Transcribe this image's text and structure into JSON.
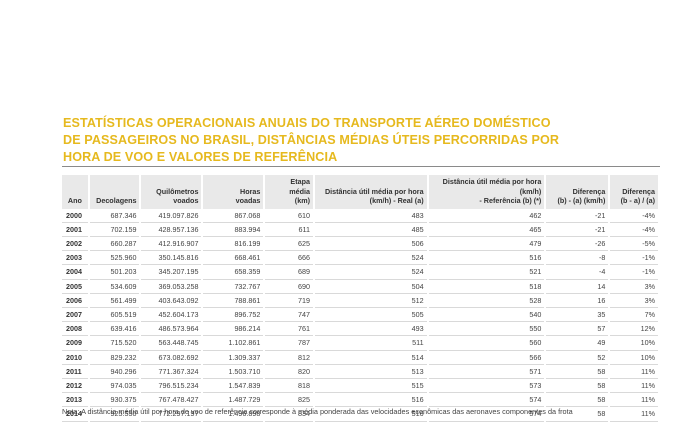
{
  "document": {
    "title_lines": [
      "ESTATÍSTICAS OPERACIONAIS ANUAIS DO TRANSPORTE AÉREO DOMÉSTICO",
      "DE PASSAGEIROS NO BRASIL, DISTÂNCIAS MÉDIAS ÚTEIS PERCORRIDAS POR",
      "HORA DE VOO E VALORES DE REFERÊNCIA"
    ],
    "note": "Nota: A distância média útil por hora de voo de referência corresponde à média ponderada das velocidades econômicas das aeronaves componentes da frota"
  },
  "colors": {
    "title": "#e6b91e",
    "header_bg": "#e9e9e9",
    "row_rule": "#d9d9d9"
  },
  "table": {
    "headers": [
      [
        "Ano"
      ],
      [
        "Decolagens"
      ],
      [
        "Quilômetros",
        "voados"
      ],
      [
        "Horas",
        "voadas"
      ],
      [
        "Etapa média",
        "(km)"
      ],
      [
        "Distância útil média por hora",
        "(km/h) - Real (a)"
      ],
      [
        "Distância útil média por hora (km/h)",
        "- Referência (b) (*)"
      ],
      [
        "Diferença",
        "(b) - (a) (km/h)"
      ],
      [
        "Diferença",
        "(b - a) / (a)"
      ]
    ],
    "rows": [
      [
        "2000",
        "687.346",
        "419.097.826",
        "867.068",
        "610",
        "483",
        "462",
        "-21",
        "-4%"
      ],
      [
        "2001",
        "702.159",
        "428.957.136",
        "883.994",
        "611",
        "485",
        "465",
        "-21",
        "-4%"
      ],
      [
        "2002",
        "660.287",
        "412.916.907",
        "816.199",
        "625",
        "506",
        "479",
        "-26",
        "-5%"
      ],
      [
        "2003",
        "525.960",
        "350.145.816",
        "668.461",
        "666",
        "524",
        "516",
        "-8",
        "-1%"
      ],
      [
        "2004",
        "501.203",
        "345.207.195",
        "658.359",
        "689",
        "524",
        "521",
        "-4",
        "-1%"
      ],
      [
        "2005",
        "534.609",
        "369.053.258",
        "732.767",
        "690",
        "504",
        "518",
        "14",
        "3%"
      ],
      [
        "2006",
        "561.499",
        "403.643.092",
        "788.861",
        "719",
        "512",
        "528",
        "16",
        "3%"
      ],
      [
        "2007",
        "605.519",
        "452.604.173",
        "896.752",
        "747",
        "505",
        "540",
        "35",
        "7%"
      ],
      [
        "2008",
        "639.416",
        "486.573.964",
        "986.214",
        "761",
        "493",
        "550",
        "57",
        "12%"
      ],
      [
        "2009",
        "715.520",
        "563.448.745",
        "1.102.861",
        "787",
        "511",
        "560",
        "49",
        "10%"
      ],
      [
        "2010",
        "829.232",
        "673.082.692",
        "1.309.337",
        "812",
        "514",
        "566",
        "52",
        "10%"
      ],
      [
        "2011",
        "940.296",
        "771.367.324",
        "1.503.710",
        "820",
        "513",
        "571",
        "58",
        "11%"
      ],
      [
        "2012",
        "974.035",
        "796.515.234",
        "1.547.839",
        "818",
        "515",
        "573",
        "58",
        "11%"
      ],
      [
        "2013",
        "930.375",
        "767.478.427",
        "1.487.729",
        "825",
        "516",
        "574",
        "58",
        "11%"
      ],
      [
        "2014",
        "925.550",
        "772.297.197",
        "1.496.898",
        "834",
        "516",
        "574",
        "58",
        "11%"
      ]
    ]
  }
}
